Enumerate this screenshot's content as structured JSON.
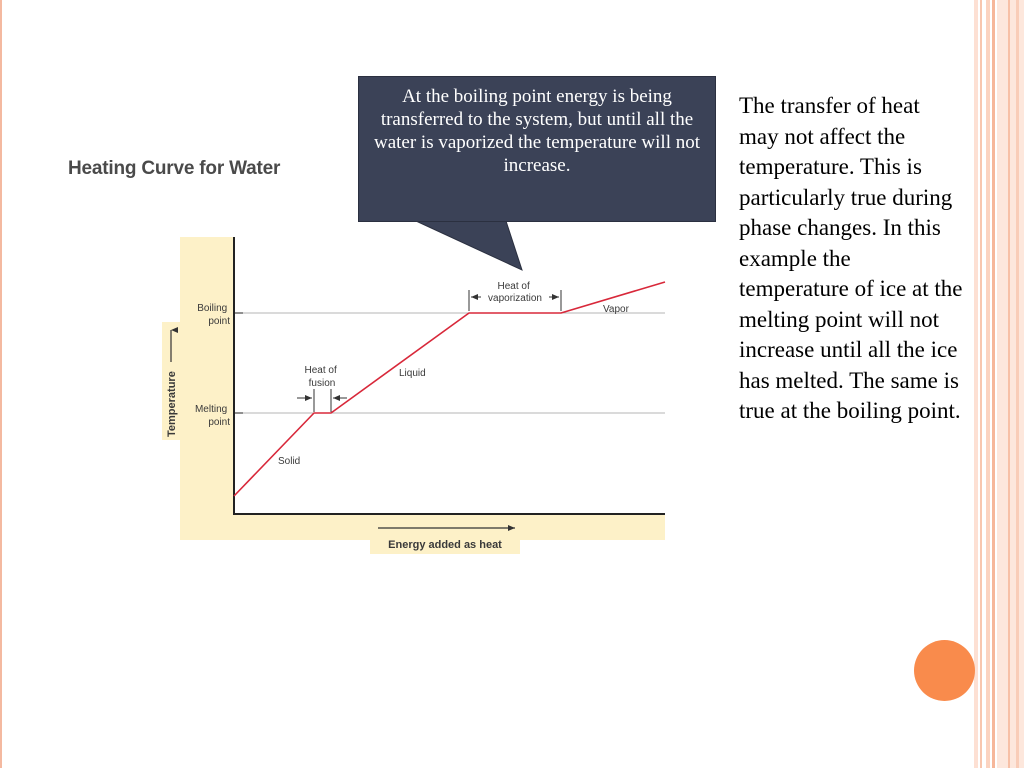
{
  "slide": {
    "callout": "At the boiling point energy is being transferred to the system, but until all the water is vaporized the temperature will not increase.",
    "body": "The transfer of heat may not affect the temperature. This is particularly true during phase changes. In this example the temperature of ice at the melting point will not increase until all the ice has melted. The same is true at the boiling point.",
    "accent_color": "#f98b4c",
    "callout_color": "#3b4257"
  },
  "chart_data": {
    "type": "line",
    "title": "Heating Curve for Water",
    "xlabel": "Energy added as heat",
    "ylabel": "Temperature",
    "y_ticks": [
      {
        "label_lines": [
          "Melting",
          "point"
        ]
      },
      {
        "label_lines": [
          "Boiling",
          "point"
        ]
      }
    ],
    "grid": "horizontal lines at melting point and boiling point",
    "series": [
      {
        "color": "#d8283a",
        "segments": [
          {
            "phase": "Solid",
            "trend": "rising"
          },
          {
            "phase": "Heat of fusion",
            "trend": "flat at melting point"
          },
          {
            "phase": "Liquid",
            "trend": "rising"
          },
          {
            "phase": "Heat of vaporization",
            "trend": "flat at boiling point"
          },
          {
            "phase": "Vapor",
            "trend": "rising"
          }
        ]
      }
    ],
    "annotations": {
      "solid": "Solid",
      "liquid": "Liquid",
      "vapor": "Vapor",
      "fusion_lines": [
        "Heat of",
        "fusion"
      ],
      "vaporization_lines": [
        "Heat of",
        "vaporization"
      ]
    },
    "background_color": "#fdf1c8"
  }
}
